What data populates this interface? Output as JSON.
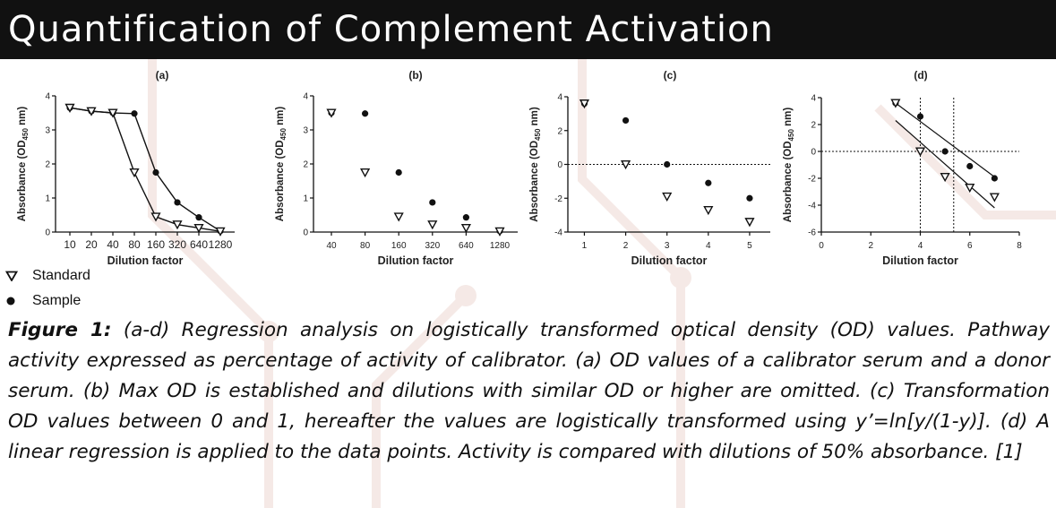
{
  "header": {
    "title": "Quantification of Complement Activation"
  },
  "legend": {
    "standard": "Standard",
    "sample": "Sample"
  },
  "caption": {
    "label": "Figure 1:",
    "text": "(a-d) Regression analysis on logistically transformed optical density (OD) values. Pathway activity expressed as percentage of activity of calibrator. (a) OD values of a calibrator serum and a donor serum. (b) Max OD is established and dilutions with similar OD or higher are omitted. (c) Transformation OD values between 0 and 1, hereafter the values are logistically transformed using y’=ln[y/(1-y)]. (d) A linear regression is applied to the data points. Activity is compared with dilutions of 50% absorbance. [1]"
  },
  "colors": {
    "banner": "#111111",
    "text": "#222222",
    "decoration": "#f3e6e3"
  },
  "chart_data": [
    {
      "panel": "(a)",
      "type": "line",
      "xlabel": "Dilution factor",
      "ylabel": "Absorbance (OD450 nm)",
      "categories": [
        "10",
        "20",
        "40",
        "80",
        "160",
        "320",
        "640",
        "1280"
      ],
      "yticks": [
        "0",
        "1",
        "2",
        "3",
        "4"
      ],
      "ylim": [
        0,
        4
      ],
      "series": [
        {
          "name": "Standard",
          "marker": "open-triangle-down",
          "values": [
            3.65,
            3.55,
            3.5,
            1.75,
            0.45,
            0.22,
            0.12,
            0.02
          ]
        },
        {
          "name": "Sample",
          "marker": "filled-circle",
          "values": [
            3.65,
            3.55,
            3.5,
            3.48,
            1.75,
            0.87,
            0.43,
            0.03
          ]
        }
      ]
    },
    {
      "panel": "(b)",
      "type": "scatter",
      "xlabel": "Dilution factor",
      "ylabel": "Absorbance (OD450 nm)",
      "categories": [
        "40",
        "80",
        "160",
        "320",
        "640",
        "1280"
      ],
      "yticks": [
        "0",
        "1",
        "2",
        "3",
        "4"
      ],
      "ylim": [
        0,
        4
      ],
      "series": [
        {
          "name": "Standard",
          "marker": "open-triangle-down",
          "values": [
            3.5,
            1.75,
            0.45,
            0.22,
            0.12,
            0.02
          ]
        },
        {
          "name": "Sample",
          "marker": "filled-circle",
          "values": [
            3.5,
            3.48,
            1.75,
            0.87,
            0.43,
            0.03
          ]
        }
      ]
    },
    {
      "panel": "(c)",
      "type": "scatter",
      "xlabel": "Dilution factor",
      "ylabel": "Absorbance (OD450 nm)",
      "xticks": [
        "1",
        "2",
        "3",
        "4",
        "5"
      ],
      "xlim": [
        0.6,
        5.5
      ],
      "yticks": [
        "-4",
        "-2",
        "0",
        "2",
        "4"
      ],
      "ylim": [
        -4,
        4
      ],
      "reference_line_y": 0,
      "series": [
        {
          "name": "Standard",
          "marker": "open-triangle-down",
          "x": [
            1,
            2,
            3,
            4,
            5
          ],
          "y": [
            3.6,
            0.0,
            -1.9,
            -2.7,
            -3.4
          ]
        },
        {
          "name": "Sample",
          "marker": "filled-circle",
          "x": [
            1,
            2,
            3,
            4,
            5
          ],
          "y": [
            3.6,
            2.6,
            0.0,
            -1.1,
            -2.0
          ]
        }
      ]
    },
    {
      "panel": "(d)",
      "type": "scatter",
      "xlabel": "Dilution factor",
      "ylabel": "Absorbance (OD450 nm)",
      "xticks": [
        "0",
        "2",
        "4",
        "6",
        "8"
      ],
      "xlim": [
        0,
        8
      ],
      "yticks": [
        "-6",
        "-4",
        "-2",
        "0",
        "2",
        "4"
      ],
      "ylim": [
        -6,
        4
      ],
      "reference_line_y": 0,
      "reference_lines_x": [
        4,
        5.35
      ],
      "regression_lines": [
        {
          "series": "Sample",
          "x": [
            3,
            7
          ],
          "y": [
            3.6,
            -1.9
          ]
        },
        {
          "series": "Standard",
          "x": [
            3,
            7
          ],
          "y": [
            2.3,
            -4.2
          ]
        }
      ],
      "series": [
        {
          "name": "Standard",
          "marker": "open-triangle-down",
          "x": [
            3,
            4,
            5,
            6,
            7
          ],
          "y": [
            3.6,
            0.0,
            -1.9,
            -2.7,
            -3.4
          ]
        },
        {
          "name": "Sample",
          "marker": "filled-circle",
          "x": [
            3,
            4,
            5,
            6,
            7
          ],
          "y": [
            3.6,
            2.6,
            0.0,
            -1.1,
            -2.0
          ]
        }
      ]
    }
  ]
}
